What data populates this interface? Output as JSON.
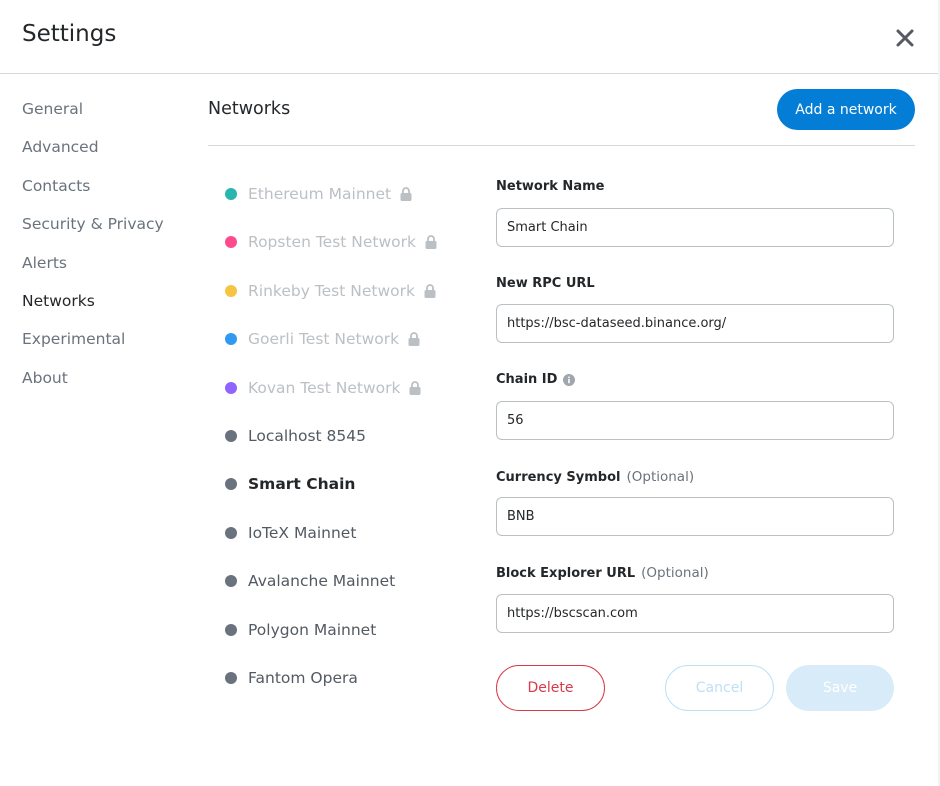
{
  "header": {
    "title": "Settings"
  },
  "sidebar": {
    "items": [
      {
        "label": "General",
        "active": false
      },
      {
        "label": "Advanced",
        "active": false
      },
      {
        "label": "Contacts",
        "active": false
      },
      {
        "label": "Security & Privacy",
        "active": false
      },
      {
        "label": "Alerts",
        "active": false
      },
      {
        "label": "Networks",
        "active": true
      },
      {
        "label": "Experimental",
        "active": false
      },
      {
        "label": "About",
        "active": false
      }
    ]
  },
  "networks": {
    "title": "Networks",
    "add_button": "Add a network",
    "list": [
      {
        "label": "Ethereum Mainnet",
        "color": "#29b6af",
        "locked": true,
        "selected": false
      },
      {
        "label": "Ropsten Test Network",
        "color": "#ff4a8d",
        "locked": true,
        "selected": false
      },
      {
        "label": "Rinkeby Test Network",
        "color": "#f6c343",
        "locked": true,
        "selected": false
      },
      {
        "label": "Goerli Test Network",
        "color": "#3099f2",
        "locked": true,
        "selected": false
      },
      {
        "label": "Kovan Test Network",
        "color": "#9064ff",
        "locked": true,
        "selected": false
      },
      {
        "label": "Localhost 8545",
        "color": "#6a737d",
        "locked": false,
        "selected": false
      },
      {
        "label": "Smart Chain",
        "color": "#6a737d",
        "locked": false,
        "selected": true
      },
      {
        "label": "IoTeX Mainnet",
        "color": "#6a737d",
        "locked": false,
        "selected": false
      },
      {
        "label": "Avalanche Mainnet",
        "color": "#6a737d",
        "locked": false,
        "selected": false
      },
      {
        "label": "Polygon Mainnet",
        "color": "#6a737d",
        "locked": false,
        "selected": false
      },
      {
        "label": "Fantom Opera",
        "color": "#6a737d",
        "locked": false,
        "selected": false
      }
    ]
  },
  "form": {
    "network_name": {
      "label": "Network Name",
      "value": "Smart Chain"
    },
    "rpc_url": {
      "label": "New RPC URL",
      "value": "https://bsc-dataseed.binance.org/"
    },
    "chain_id": {
      "label": "Chain ID",
      "value": "56"
    },
    "currency_symbol": {
      "label": "Currency Symbol",
      "optional": "(Optional)",
      "value": "BNB"
    },
    "block_explorer": {
      "label": "Block Explorer URL",
      "optional": "(Optional)",
      "value": "https://bscscan.com"
    },
    "delete_label": "Delete",
    "cancel_label": "Cancel",
    "save_label": "Save"
  },
  "icons": {
    "close": "close-icon",
    "lock": "lock-icon",
    "info": "info-icon"
  }
}
